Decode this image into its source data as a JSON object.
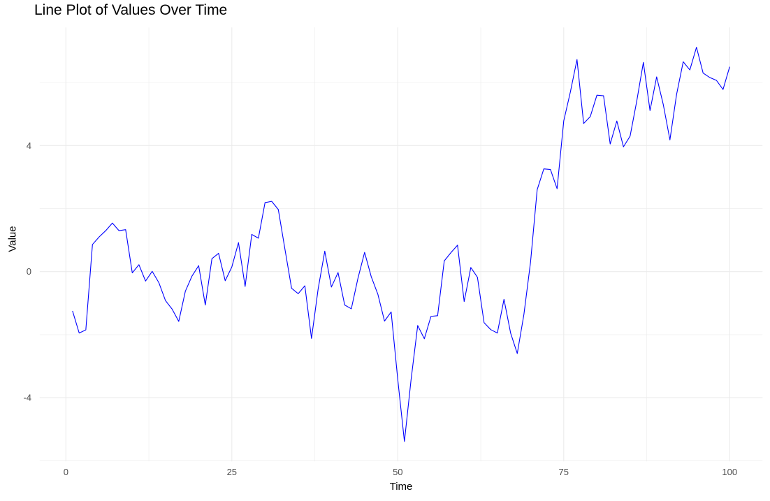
{
  "chart_data": {
    "type": "line",
    "title": "Line Plot of Values Over Time",
    "xlabel": "Time",
    "ylabel": "Value",
    "legend": false,
    "grid": true,
    "background": "#FFFFFF",
    "line_color": "#0000FF",
    "grid_color": "#EBEBEB",
    "tick_label_color": "#4D4D4D",
    "text_color": "#000000",
    "xlim": [
      -3.95,
      104.95
    ],
    "ylim": [
      -6.02,
      7.75
    ],
    "x_ticks": [
      0,
      25,
      50,
      75,
      100
    ],
    "x_minor_ticks": [
      12.5,
      37.5,
      62.5,
      87.5
    ],
    "y_ticks": [
      -4,
      0,
      4
    ],
    "y_minor_ticks": [
      -6,
      -2,
      2,
      6
    ],
    "x": [
      1,
      2,
      3,
      4,
      5,
      6,
      7,
      8,
      9,
      10,
      11,
      12,
      13,
      14,
      15,
      16,
      17,
      18,
      19,
      20,
      21,
      22,
      23,
      24,
      25,
      26,
      27,
      28,
      29,
      30,
      31,
      32,
      33,
      34,
      35,
      36,
      37,
      38,
      39,
      40,
      41,
      42,
      43,
      44,
      45,
      46,
      47,
      48,
      49,
      50,
      51,
      52,
      53,
      54,
      55,
      56,
      57,
      58,
      59,
      60,
      61,
      62,
      63,
      64,
      65,
      66,
      67,
      68,
      69,
      70,
      71,
      72,
      73,
      74,
      75,
      76,
      77,
      78,
      79,
      80,
      81,
      82,
      83,
      84,
      85,
      86,
      87,
      88,
      89,
      90,
      91,
      92,
      93,
      94,
      95,
      96,
      97,
      98,
      99,
      100
    ],
    "values": [
      -1.25,
      -1.95,
      -1.85,
      0.86,
      1.1,
      1.3,
      1.54,
      1.3,
      1.33,
      -0.04,
      0.22,
      -0.3,
      0.01,
      -0.35,
      -0.92,
      -1.19,
      -1.58,
      -0.62,
      -0.14,
      0.19,
      -1.06,
      0.41,
      0.58,
      -0.29,
      0.15,
      0.92,
      -0.47,
      1.18,
      1.06,
      2.19,
      2.23,
      1.97,
      0.71,
      -0.53,
      -0.7,
      -0.45,
      -2.12,
      -0.55,
      0.65,
      -0.49,
      -0.03,
      -1.06,
      -1.18,
      -0.21,
      0.61,
      -0.16,
      -0.72,
      -1.57,
      -1.28,
      -3.43,
      -5.39,
      -3.43,
      -1.71,
      -2.13,
      -1.42,
      -1.4,
      0.34,
      0.6,
      0.84,
      -0.95,
      0.13,
      -0.18,
      -1.62,
      -1.84,
      -1.95,
      -0.88,
      -1.95,
      -2.6,
      -1.36,
      0.3,
      2.6,
      3.26,
      3.24,
      2.63,
      4.78,
      5.7,
      6.73,
      4.7,
      4.92,
      5.6,
      5.58,
      4.05,
      4.78,
      3.96,
      4.3,
      5.41,
      6.64,
      5.11,
      6.18,
      5.3,
      4.18,
      5.62,
      6.66,
      6.4,
      7.12,
      6.3,
      6.16,
      6.07,
      5.78,
      6.5
    ]
  }
}
